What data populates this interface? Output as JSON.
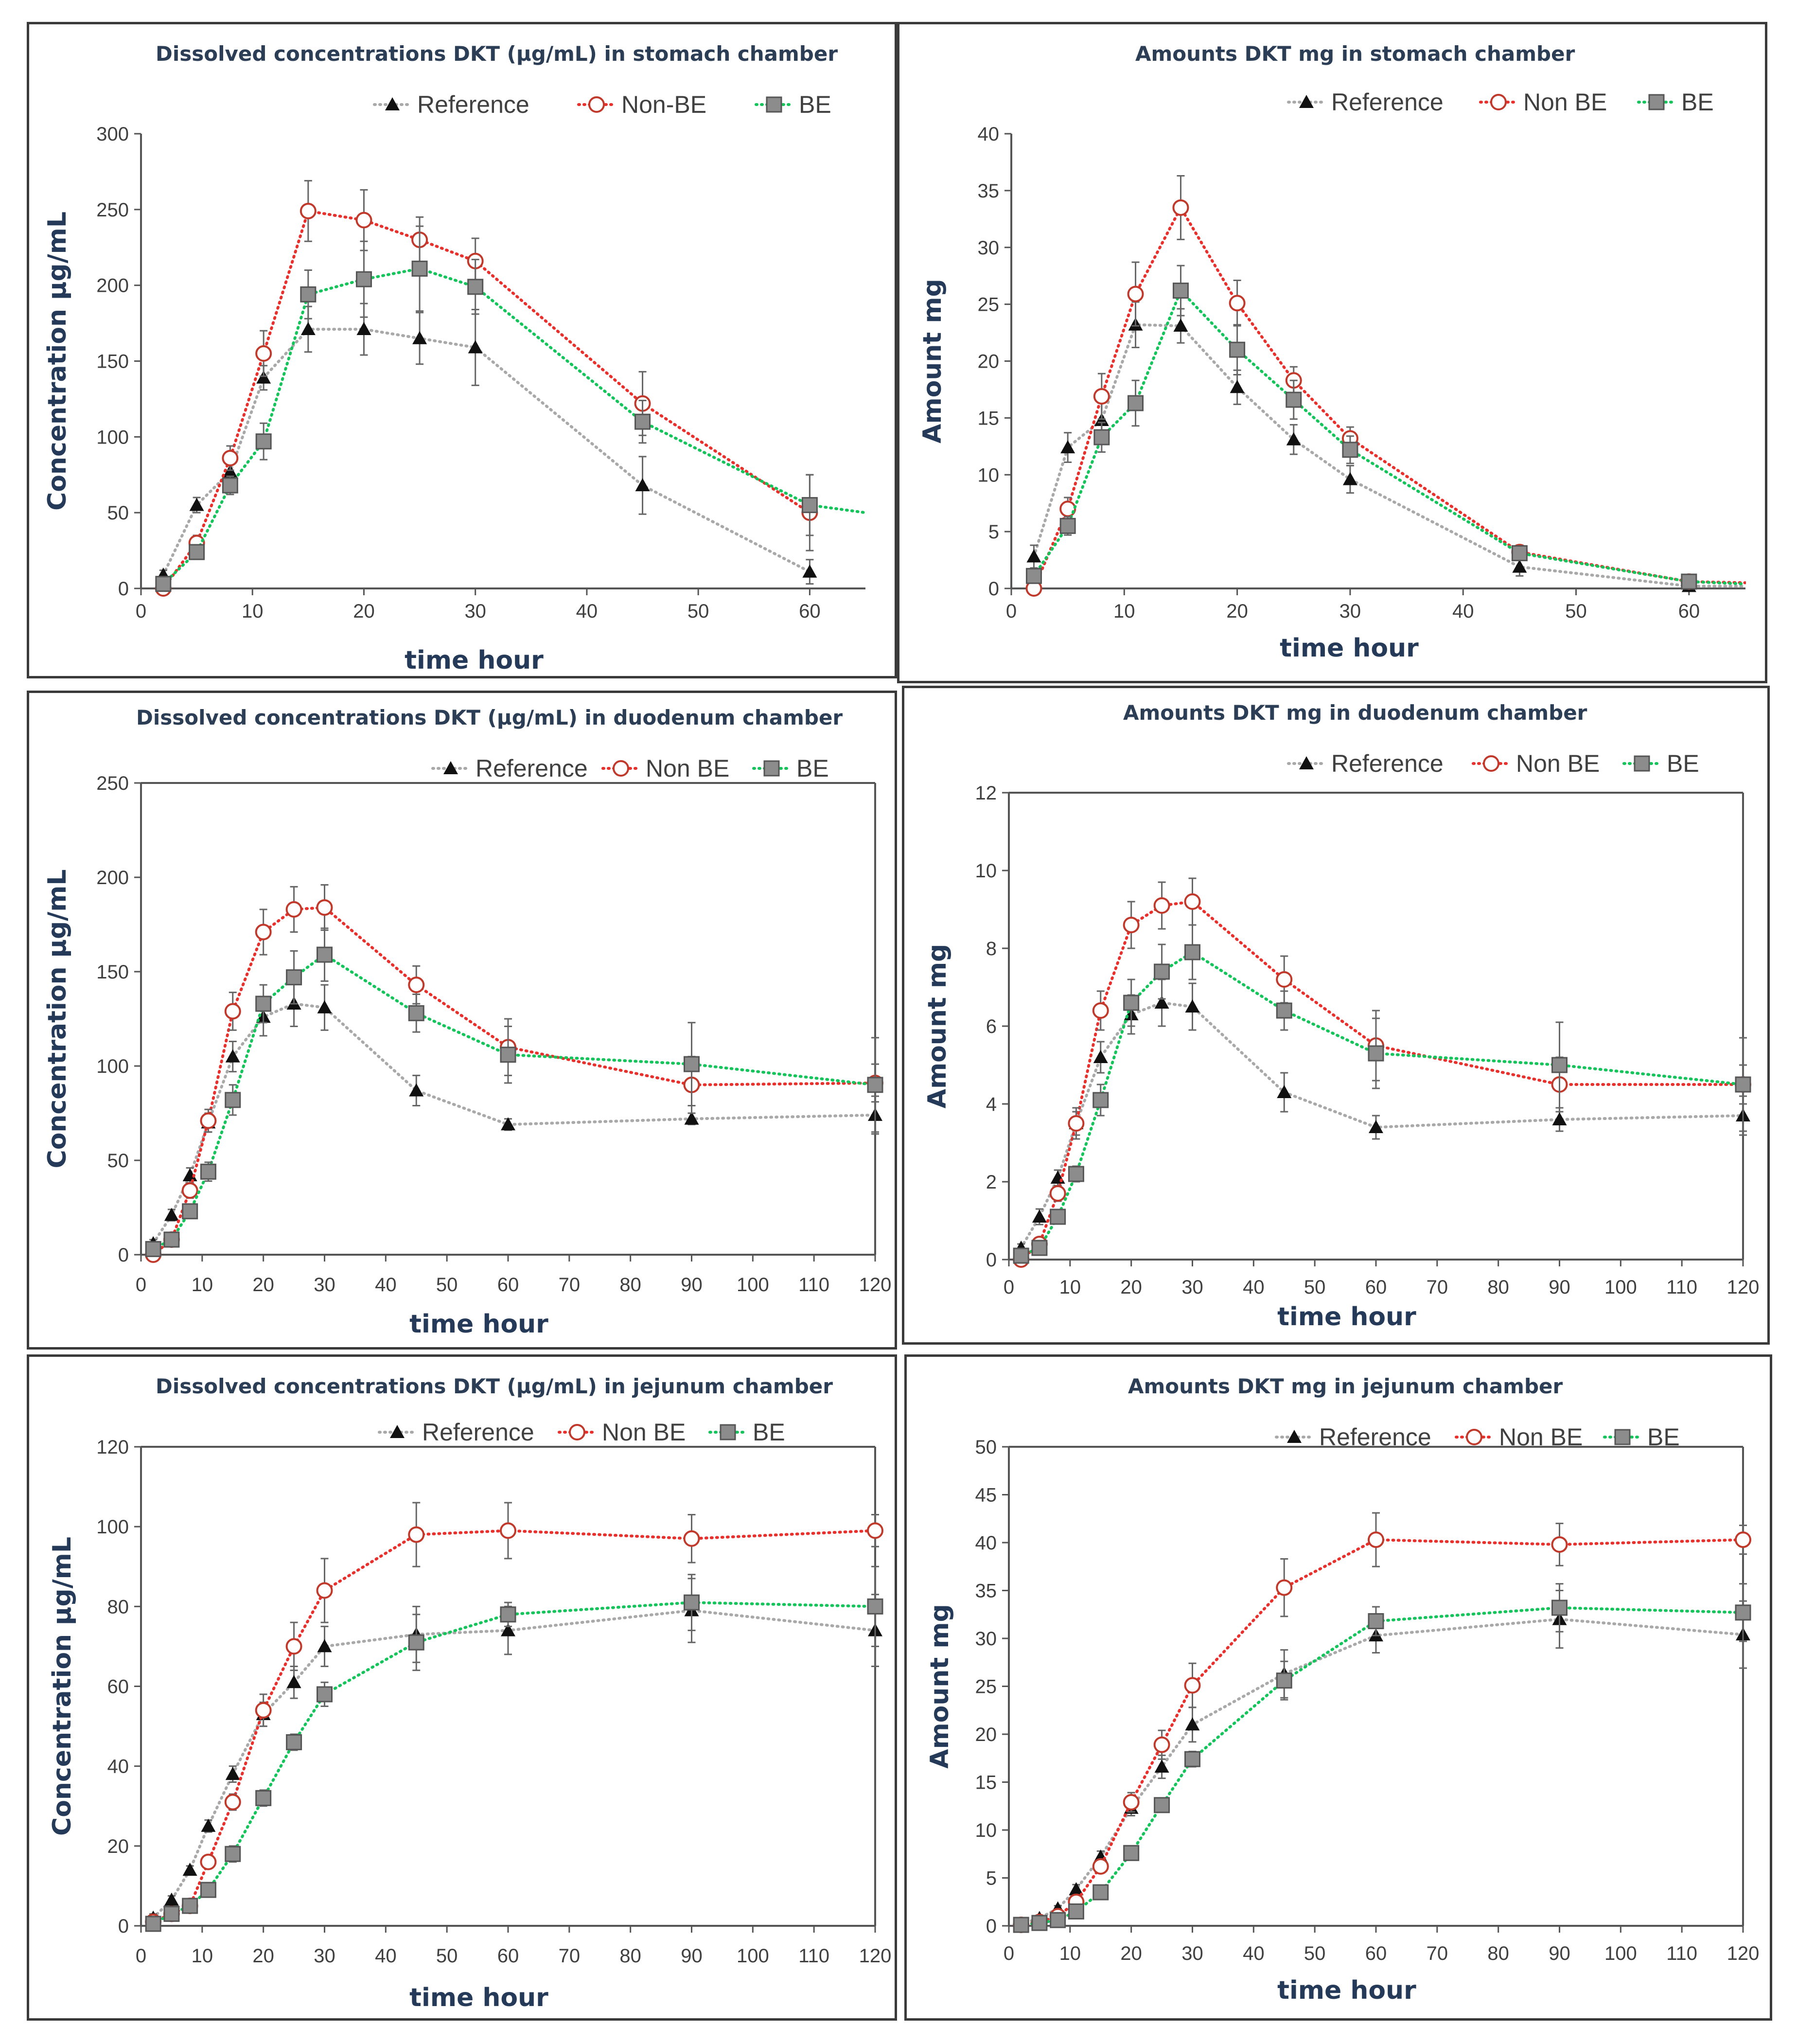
{
  "chart_data": [
    {
      "type": "line",
      "title": "Dissolved concentrations  DKT (µg/mL)  in stomach chamber",
      "xlabel": "time hour",
      "ylabel": "Concentration µg/mL",
      "xlim": [
        0,
        65
      ],
      "ylim": [
        0,
        300
      ],
      "xticks": [
        0,
        10,
        20,
        30,
        40,
        50,
        60
      ],
      "yticks": [
        0,
        50,
        100,
        150,
        200,
        250,
        300
      ],
      "legend_position": "top-right",
      "series": [
        {
          "name": "Reference",
          "x": [
            2,
            5,
            8,
            11,
            15,
            20,
            25,
            30,
            45,
            60
          ],
          "values": [
            9,
            55,
            77,
            139,
            171,
            171,
            165,
            159,
            68,
            11
          ],
          "errors": [
            3,
            5,
            6,
            8,
            15,
            17,
            17,
            25,
            19,
            8
          ]
        },
        {
          "name": "Non-BE",
          "x": [
            2,
            5,
            8,
            11,
            15,
            20,
            25,
            30,
            45,
            60
          ],
          "values": [
            0,
            30,
            86,
            155,
            249,
            243,
            230,
            216,
            122,
            50
          ],
          "errors": [
            2,
            5,
            8,
            15,
            20,
            20,
            15,
            15,
            21,
            25
          ]
        },
        {
          "name": "BE",
          "x": [
            2,
            5,
            8,
            11,
            15,
            20,
            25,
            30,
            45,
            60,
            65
          ],
          "values": [
            3,
            24,
            68,
            97,
            194,
            204,
            211,
            199,
            110,
            55,
            50
          ],
          "errors": [
            2,
            4,
            6,
            12,
            16,
            25,
            28,
            18,
            14,
            20,
            0
          ]
        }
      ]
    },
    {
      "type": "line",
      "title": "Amounts DKT mg in stomach chamber",
      "xlabel": "time hour",
      "ylabel": "Amount mg",
      "xlim": [
        0,
        65
      ],
      "ylim": [
        0,
        40
      ],
      "xticks": [
        0,
        10,
        20,
        30,
        40,
        50,
        60
      ],
      "yticks": [
        0,
        5,
        10,
        15,
        20,
        25,
        30,
        35,
        40
      ],
      "legend_position": "top-right",
      "series": [
        {
          "name": "Reference",
          "x": [
            2,
            5,
            8,
            11,
            15,
            20,
            25,
            30,
            45,
            60,
            65
          ],
          "values": [
            2.8,
            12.4,
            14.8,
            23.2,
            23.1,
            17.7,
            13.1,
            9.6,
            1.9,
            0.2,
            0.2
          ],
          "errors": [
            1.0,
            1.3,
            1.5,
            2.0,
            1.5,
            1.5,
            1.3,
            1.2,
            0.8,
            0.2,
            0
          ]
        },
        {
          "name": "Non BE",
          "x": [
            2,
            5,
            8,
            11,
            15,
            20,
            25,
            30,
            45,
            60,
            65
          ],
          "values": [
            0,
            7.0,
            16.9,
            25.9,
            33.5,
            25.1,
            18.3,
            13.2,
            3.2,
            0.6,
            0.5
          ],
          "errors": [
            0.5,
            1.0,
            2.0,
            2.8,
            2.8,
            2.0,
            1.2,
            1.0,
            0.6,
            0.3,
            0
          ]
        },
        {
          "name": "BE",
          "x": [
            2,
            5,
            8,
            11,
            15,
            20,
            25,
            30,
            45,
            60,
            65
          ],
          "values": [
            1.1,
            5.5,
            13.3,
            16.3,
            26.2,
            21.0,
            16.6,
            12.2,
            3.1,
            0.6,
            0.4
          ],
          "errors": [
            0.5,
            0.8,
            1.3,
            2.0,
            2.2,
            2.2,
            1.7,
            1.2,
            0.6,
            0.3,
            0
          ]
        }
      ]
    },
    {
      "type": "line",
      "title": "Dissolved concentrations  DKT (µg/mL) in duodenum chamber",
      "xlabel": "time hour",
      "ylabel": "Concentration  µg/mL",
      "xlim": [
        0,
        120
      ],
      "ylim": [
        0,
        250
      ],
      "xticks": [
        0,
        10,
        20,
        30,
        40,
        50,
        60,
        70,
        80,
        90,
        100,
        110,
        120
      ],
      "yticks": [
        0,
        50,
        100,
        150,
        200,
        250
      ],
      "legend_position": "top-right",
      "series": [
        {
          "name": "Reference",
          "x": [
            2,
            5,
            8,
            11,
            15,
            20,
            25,
            30,
            45,
            60,
            90,
            120
          ],
          "values": [
            6,
            21,
            42,
            70,
            105,
            126,
            133,
            131,
            87,
            69,
            72,
            74
          ],
          "errors": [
            2,
            3,
            4,
            5,
            8,
            10,
            12,
            12,
            8,
            3,
            3,
            10
          ]
        },
        {
          "name": "Non BE",
          "x": [
            2,
            5,
            8,
            11,
            15,
            20,
            25,
            30,
            45,
            60,
            90,
            120
          ],
          "values": [
            0,
            8,
            34,
            71,
            129,
            171,
            183,
            184,
            143,
            110,
            90,
            91
          ],
          "errors": [
            2,
            2,
            4,
            6,
            10,
            12,
            12,
            12,
            10,
            15,
            15,
            10
          ]
        },
        {
          "name": "BE",
          "x": [
            2,
            5,
            8,
            11,
            15,
            20,
            25,
            30,
            45,
            60,
            90,
            120
          ],
          "values": [
            3,
            8,
            23,
            44,
            82,
            133,
            147,
            159,
            128,
            106,
            101,
            90
          ],
          "errors": [
            2,
            2,
            3,
            5,
            8,
            10,
            14,
            14,
            10,
            15,
            22,
            25
          ]
        }
      ]
    },
    {
      "type": "line",
      "title": "Amounts DKT mg in duodenum chamber",
      "xlabel": "time hour",
      "ylabel": "Amount mg",
      "xlim": [
        0,
        120
      ],
      "ylim": [
        0,
        12
      ],
      "xticks": [
        0,
        10,
        20,
        30,
        40,
        50,
        60,
        70,
        80,
        90,
        100,
        110,
        120
      ],
      "yticks": [
        0,
        2,
        4,
        6,
        8,
        10,
        12
      ],
      "legend_position": "top-right",
      "series": [
        {
          "name": "Reference",
          "x": [
            2,
            5,
            8,
            11,
            15,
            20,
            25,
            30,
            45,
            60,
            90,
            120
          ],
          "values": [
            0.3,
            1.1,
            2.1,
            3.5,
            5.2,
            6.3,
            6.6,
            6.5,
            4.3,
            3.4,
            3.6,
            3.7
          ],
          "errors": [
            0.1,
            0.2,
            0.2,
            0.3,
            0.4,
            0.5,
            0.6,
            0.6,
            0.5,
            0.3,
            0.3,
            0.5
          ]
        },
        {
          "name": "Non BE",
          "x": [
            2,
            5,
            8,
            11,
            15,
            20,
            25,
            30,
            45,
            60,
            90,
            120
          ],
          "values": [
            0,
            0.4,
            1.7,
            3.5,
            6.4,
            8.6,
            9.1,
            9.2,
            7.2,
            5.5,
            4.5,
            4.5
          ],
          "errors": [
            0.1,
            0.1,
            0.2,
            0.4,
            0.5,
            0.6,
            0.6,
            0.6,
            0.6,
            0.9,
            0.7,
            0.5
          ]
        },
        {
          "name": "BE",
          "x": [
            2,
            5,
            8,
            11,
            15,
            20,
            25,
            30,
            45,
            60,
            90,
            120
          ],
          "values": [
            0.1,
            0.3,
            1.1,
            2.2,
            4.1,
            6.6,
            7.4,
            7.9,
            6.4,
            5.3,
            5.0,
            4.5
          ],
          "errors": [
            0.1,
            0.1,
            0.1,
            0.2,
            0.4,
            0.6,
            0.7,
            0.7,
            0.5,
            0.9,
            1.1,
            1.2
          ]
        }
      ]
    },
    {
      "type": "line",
      "title": "Dissolved concentrations  DKT (µg/mL) in jejunum chamber",
      "xlabel": "time hour",
      "ylabel": "Concentration  µg/mL",
      "xlim": [
        0,
        120
      ],
      "ylim": [
        0,
        120
      ],
      "xticks": [
        0,
        10,
        20,
        30,
        40,
        50,
        60,
        70,
        80,
        90,
        100,
        110,
        120
      ],
      "yticks": [
        0,
        20,
        40,
        60,
        80,
        100,
        120
      ],
      "legend_position": "top-right",
      "series": [
        {
          "name": "Reference",
          "x": [
            2,
            5,
            8,
            11,
            15,
            20,
            25,
            30,
            45,
            60,
            90,
            120
          ],
          "values": [
            2,
            6.5,
            14,
            25,
            38,
            53,
            61,
            70,
            73,
            74,
            79,
            74
          ],
          "errors": [
            1,
            1,
            1,
            1.5,
            2,
            3,
            4,
            5,
            7,
            6,
            8,
            9
          ]
        },
        {
          "name": "Non BE",
          "x": [
            2,
            5,
            8,
            11,
            15,
            20,
            25,
            30,
            45,
            60,
            90,
            120
          ],
          "values": [
            1,
            3,
            5,
            16,
            31,
            54,
            70,
            84,
            98,
            99,
            97,
            99
          ],
          "errors": [
            1,
            1,
            1,
            1.5,
            2,
            4,
            6,
            8,
            8,
            7,
            6,
            4
          ]
        },
        {
          "name": "BE",
          "x": [
            2,
            5,
            8,
            11,
            15,
            20,
            25,
            30,
            45,
            60,
            90,
            120
          ],
          "values": [
            0.5,
            3,
            5,
            9,
            18,
            32,
            46,
            58,
            71,
            78,
            81,
            80
          ],
          "errors": [
            0.5,
            0.5,
            1,
            1.5,
            2,
            2,
            2,
            3,
            7,
            3,
            7,
            10
          ]
        }
      ]
    },
    {
      "type": "line",
      "title": "Amounts DKT mg in jejunum chamber",
      "xlabel": "time hour",
      "ylabel": "Amount mg",
      "xlim": [
        0,
        120
      ],
      "ylim": [
        0,
        50
      ],
      "xticks": [
        0,
        10,
        20,
        30,
        40,
        50,
        60,
        70,
        80,
        90,
        100,
        110,
        120
      ],
      "yticks": [
        0,
        5,
        10,
        15,
        20,
        25,
        30,
        35,
        40,
        45,
        50
      ],
      "legend_position": "top-right",
      "series": [
        {
          "name": "Reference",
          "x": [
            2,
            5,
            8,
            11,
            15,
            20,
            25,
            30,
            45,
            60,
            90,
            120
          ],
          "values": [
            0.2,
            0.8,
            1.8,
            3.8,
            7.2,
            12.3,
            16.6,
            21.0,
            26.3,
            30.3,
            32.0,
            30.4
          ],
          "errors": [
            0.1,
            0.2,
            0.3,
            0.5,
            0.6,
            0.8,
            1.2,
            1.8,
            2.5,
            1.8,
            3.0,
            3.5
          ]
        },
        {
          "name": "Non BE",
          "x": [
            2,
            5,
            8,
            11,
            15,
            20,
            25,
            30,
            45,
            60,
            90,
            120
          ],
          "values": [
            0.1,
            0.4,
            1.0,
            2.5,
            6.2,
            12.9,
            18.9,
            25.1,
            35.3,
            40.3,
            39.8,
            40.3
          ],
          "errors": [
            0.1,
            0.1,
            0.2,
            0.4,
            0.6,
            1.0,
            1.5,
            2.3,
            3.0,
            2.8,
            2.2,
            1.5
          ]
        },
        {
          "name": "BE",
          "x": [
            2,
            5,
            8,
            11,
            15,
            20,
            25,
            30,
            45,
            60,
            90,
            120
          ],
          "values": [
            0.1,
            0.3,
            0.6,
            1.5,
            3.5,
            7.6,
            12.6,
            17.4,
            25.6,
            31.8,
            33.2,
            32.7
          ],
          "errors": [
            0.1,
            0.1,
            0.1,
            0.2,
            0.4,
            0.5,
            0.6,
            0.8,
            2.0,
            1.5,
            2.5,
            3.0
          ]
        }
      ]
    }
  ],
  "series_styles": {
    "Reference": {
      "line_color": "#a9a9a9",
      "marker": "triangle",
      "marker_fill": "#111111"
    },
    "Non": {
      "line_color": "#e8302c",
      "marker": "circle",
      "marker_fill": "#ffffff",
      "marker_stroke": "#c0392b"
    },
    "BE": {
      "line_color": "#16c45c",
      "marker": "square",
      "marker_fill": "#8c8c8c",
      "marker_stroke": "#555555"
    }
  }
}
